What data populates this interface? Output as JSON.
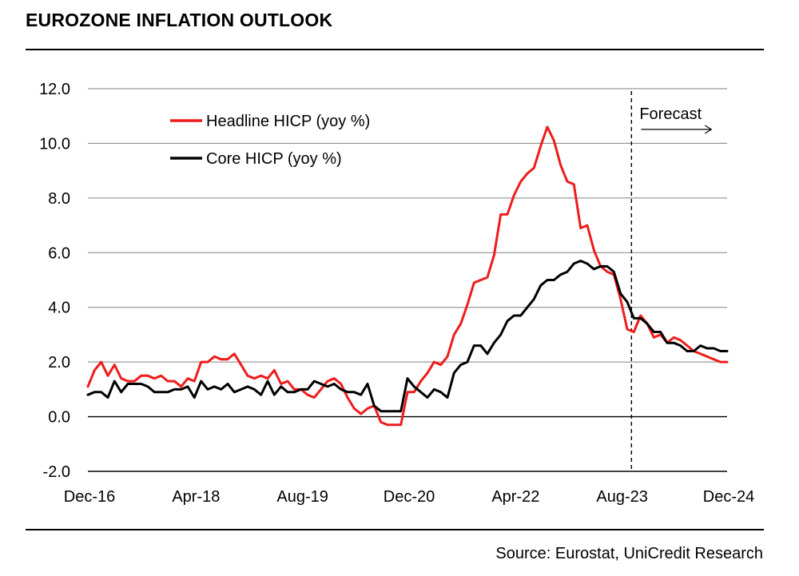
{
  "title": "EUROZONE INFLATION OUTLOOK",
  "source": "Source: Eurostat, UniCredit Research",
  "forecast_label": "Forecast",
  "colors": {
    "headline": "#ee1c1c",
    "core": "#000000",
    "grid": "#808080"
  },
  "chart_data": {
    "type": "line",
    "title": "EUROZONE INFLATION OUTLOOK",
    "xlabel": "",
    "ylabel": "",
    "ylim": [
      -2.0,
      12.0
    ],
    "y_ticks": [
      "12.0",
      "10.0",
      "8.0",
      "6.0",
      "4.0",
      "2.0",
      "0.0",
      "-2.0"
    ],
    "x_tick_labels": [
      "Dec-16",
      "Apr-18",
      "Aug-19",
      "Dec-20",
      "Apr-22",
      "Aug-23",
      "Dec-24"
    ],
    "x_start": "Dec-16",
    "x_end": "Dec-24",
    "frequency": "monthly",
    "grid": true,
    "legend_position": "top-left",
    "forecast_start": "Oct-23",
    "series": [
      {
        "name": "Headline HICP (yoy %)",
        "color": "#ee1c1c",
        "values": [
          1.1,
          1.7,
          2.0,
          1.5,
          1.9,
          1.4,
          1.3,
          1.3,
          1.5,
          1.5,
          1.4,
          1.5,
          1.3,
          1.3,
          1.1,
          1.4,
          1.3,
          2.0,
          2.0,
          2.2,
          2.1,
          2.1,
          2.3,
          1.9,
          1.5,
          1.4,
          1.5,
          1.4,
          1.7,
          1.2,
          1.3,
          1.0,
          1.0,
          0.8,
          0.7,
          1.0,
          1.3,
          1.4,
          1.2,
          0.7,
          0.3,
          0.1,
          0.3,
          0.4,
          -0.2,
          -0.3,
          -0.3,
          -0.3,
          0.9,
          0.9,
          1.3,
          1.6,
          2.0,
          1.9,
          2.2,
          3.0,
          3.4,
          4.1,
          4.9,
          5.0,
          5.1,
          5.9,
          7.4,
          7.4,
          8.1,
          8.6,
          8.9,
          9.1,
          9.9,
          10.6,
          10.1,
          9.2,
          8.6,
          8.5,
          6.9,
          7.0,
          6.1,
          5.5,
          5.3,
          5.2,
          4.3,
          3.2,
          3.1,
          3.7,
          3.4,
          2.9,
          3.0,
          2.7,
          2.9,
          2.8,
          2.6,
          2.4,
          2.3,
          2.2,
          2.1,
          2.0,
          2.0
        ]
      },
      {
        "name": "Core HICP (yoy %)",
        "color": "#000000",
        "values": [
          0.8,
          0.9,
          0.9,
          0.7,
          1.3,
          0.9,
          1.2,
          1.2,
          1.2,
          1.1,
          0.9,
          0.9,
          0.9,
          1.0,
          1.0,
          1.1,
          0.7,
          1.3,
          1.0,
          1.1,
          1.0,
          1.2,
          0.9,
          1.0,
          1.1,
          1.0,
          0.8,
          1.3,
          0.8,
          1.1,
          0.9,
          0.9,
          1.0,
          1.0,
          1.3,
          1.2,
          1.1,
          1.2,
          1.0,
          0.9,
          0.9,
          0.8,
          1.2,
          0.4,
          0.2,
          0.2,
          0.2,
          0.2,
          1.4,
          1.1,
          0.9,
          0.7,
          1.0,
          0.9,
          0.7,
          1.6,
          1.9,
          2.0,
          2.6,
          2.6,
          2.3,
          2.7,
          3.0,
          3.5,
          3.7,
          3.7,
          4.0,
          4.3,
          4.8,
          5.0,
          5.0,
          5.2,
          5.3,
          5.6,
          5.7,
          5.6,
          5.4,
          5.5,
          5.5,
          5.3,
          4.5,
          4.2,
          3.6,
          3.6,
          3.4,
          3.1,
          3.1,
          2.7,
          2.7,
          2.6,
          2.4,
          2.4,
          2.6,
          2.5,
          2.5,
          2.4,
          2.4
        ]
      }
    ]
  }
}
